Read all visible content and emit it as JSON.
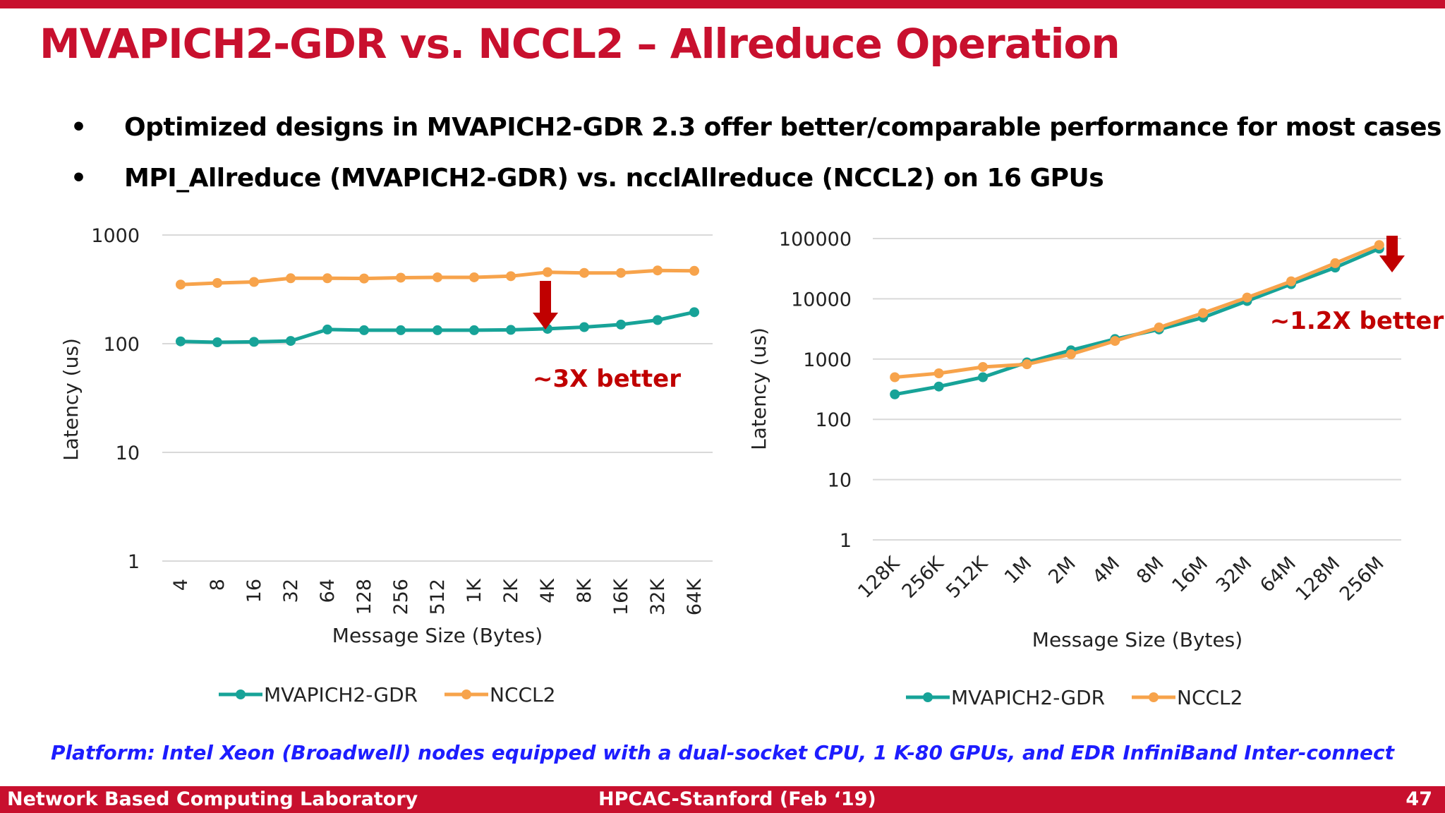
{
  "title": "MVAPICH2-GDR vs. NCCL2 – Allreduce Operation",
  "bullets": [
    "Optimized designs in MVAPICH2-GDR 2.3 offer better/comparable performance for most cases",
    "MPI_Allreduce (MVAPICH2-GDR) vs. ncclAllreduce (NCCL2) on 16 GPUs"
  ],
  "bullet_symbol": "•",
  "platform_note": "Platform: Intel Xeon (Broadwell) nodes equipped with a dual-socket CPU, 1 K-80 GPUs, and EDR InfiniBand Inter-connect",
  "footer": {
    "left": "Network Based Computing Laboratory",
    "center": "HPCAC-Stanford (Feb ‘19)",
    "right": "47"
  },
  "colors": {
    "brand_red": "#c8102e",
    "mvapich": "#17a398",
    "nccl": "#f7a34b",
    "annotation": "#c00000",
    "note_blue": "#1d1dff"
  },
  "chart_data": [
    {
      "type": "line",
      "categories": [
        "4",
        "8",
        "16",
        "32",
        "64",
        "128",
        "256",
        "512",
        "1K",
        "2K",
        "4K",
        "8K",
        "16K",
        "32K",
        "64K"
      ],
      "series": [
        {
          "name": "MVAPICH2-GDR",
          "color": "#17a398",
          "values": [
            105,
            103,
            104,
            106,
            135,
            133,
            133,
            133,
            133,
            134,
            137,
            142,
            150,
            165,
            195
          ]
        },
        {
          "name": "NCCL2",
          "color": "#f7a34b",
          "values": [
            350,
            362,
            370,
            400,
            400,
            398,
            405,
            408,
            408,
            418,
            455,
            448,
            448,
            472,
            468
          ]
        }
      ],
      "xlabel": "Message Size (Bytes)",
      "ylabel": "Latency (us)",
      "yscale": "log",
      "ylim": [
        1,
        1000
      ],
      "yticks": [
        "1",
        "10",
        "100",
        "1000"
      ],
      "grid": true,
      "legend": "bottom",
      "annotation": {
        "text": "~3X better",
        "arrow": "down",
        "at_category": "4K"
      }
    },
    {
      "type": "line",
      "categories": [
        "128K",
        "256K",
        "512K",
        "1M",
        "2M",
        "4M",
        "8M",
        "16M",
        "32M",
        "64M",
        "128M",
        "256M"
      ],
      "series": [
        {
          "name": "MVAPICH2-GDR",
          "color": "#17a398",
          "values": [
            260,
            350,
            500,
            880,
            1400,
            2150,
            3100,
            4900,
            9200,
            17500,
            33000,
            68000
          ]
        },
        {
          "name": "NCCL2",
          "color": "#f7a34b",
          "values": [
            500,
            580,
            740,
            820,
            1200,
            2000,
            3350,
            5800,
            10500,
            19500,
            39000,
            78000
          ]
        }
      ],
      "xlabel": "Message Size (Bytes)",
      "ylabel": "Latency (us)",
      "yscale": "log",
      "ylim": [
        1,
        100000
      ],
      "yticks": [
        "1",
        "10",
        "100",
        "1000",
        "10000",
        "100000"
      ],
      "grid": true,
      "legend": "bottom",
      "annotation": {
        "text": "~1.2X better",
        "arrow": "down",
        "at_category": "256M"
      }
    }
  ]
}
